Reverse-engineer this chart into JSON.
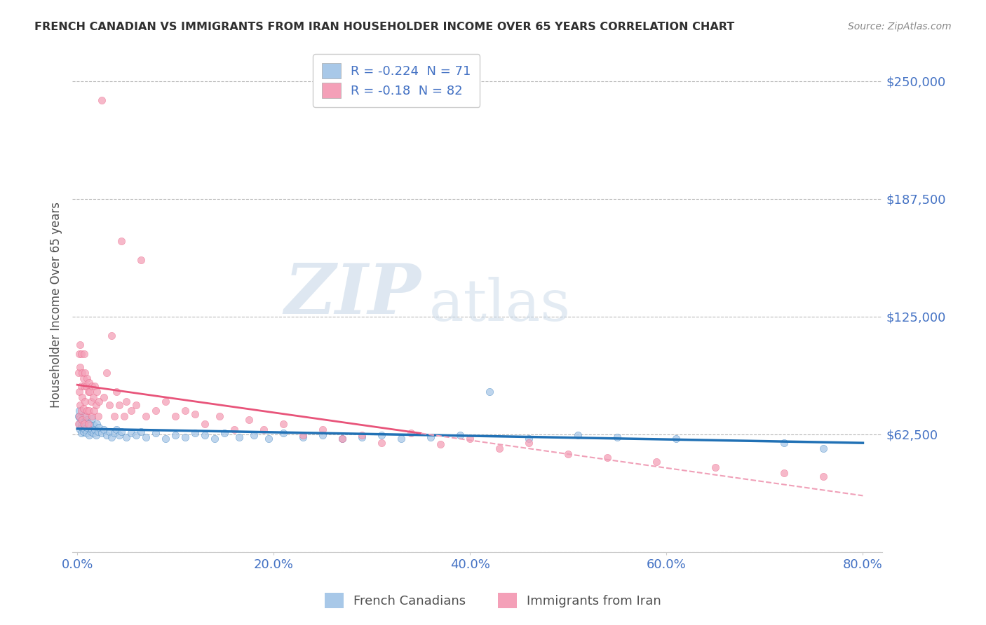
{
  "title": "FRENCH CANADIAN VS IMMIGRANTS FROM IRAN HOUSEHOLDER INCOME OVER 65 YEARS CORRELATION CHART",
  "source_text": "Source: ZipAtlas.com",
  "ylabel": "Householder Income Over 65 years",
  "xlabel_ticks": [
    "0.0%",
    "20.0%",
    "40.0%",
    "60.0%",
    "80.0%"
  ],
  "xlabel_values": [
    0.0,
    0.2,
    0.4,
    0.6,
    0.8
  ],
  "ylim": [
    0,
    262500
  ],
  "xlim": [
    -0.005,
    0.82
  ],
  "yticks": [
    0,
    62500,
    125000,
    187500,
    250000
  ],
  "ytick_labels": [
    "",
    "$62,500",
    "$125,000",
    "$187,500",
    "$250,000"
  ],
  "watermark_zip": "ZIP",
  "watermark_atlas": "atlas",
  "legend_blue_R": -0.224,
  "legend_pink_R": -0.18,
  "legend_blue_N": 71,
  "legend_pink_N": 82,
  "blue_color": "#a8c8e8",
  "pink_color": "#f4a0b8",
  "blue_line_color": "#2171b5",
  "pink_line_color": "#e8547a",
  "pink_dash_color": "#f0a0b8",
  "grid_color": "#b8b8b8",
  "title_color": "#303030",
  "axis_label_color": "#505050",
  "tick_label_color": "#4472c4",
  "source_color": "#888888",
  "background_color": "#ffffff",
  "blue_x": [
    0.001,
    0.002,
    0.002,
    0.003,
    0.003,
    0.004,
    0.004,
    0.005,
    0.005,
    0.006,
    0.006,
    0.007,
    0.008,
    0.008,
    0.009,
    0.01,
    0.01,
    0.012,
    0.012,
    0.013,
    0.014,
    0.015,
    0.015,
    0.016,
    0.017,
    0.018,
    0.019,
    0.02,
    0.021,
    0.022,
    0.025,
    0.027,
    0.03,
    0.033,
    0.035,
    0.038,
    0.04,
    0.043,
    0.045,
    0.05,
    0.055,
    0.06,
    0.065,
    0.07,
    0.08,
    0.09,
    0.1,
    0.11,
    0.12,
    0.13,
    0.14,
    0.15,
    0.165,
    0.18,
    0.195,
    0.21,
    0.23,
    0.25,
    0.27,
    0.29,
    0.31,
    0.33,
    0.36,
    0.39,
    0.42,
    0.46,
    0.51,
    0.55,
    0.61,
    0.72,
    0.76
  ],
  "blue_y": [
    72000,
    68000,
    75000,
    65000,
    71000,
    67000,
    63000,
    70000,
    66000,
    68000,
    64000,
    72000,
    65000,
    69000,
    63000,
    70000,
    66000,
    68000,
    62000,
    67000,
    64000,
    71000,
    65000,
    63000,
    67000,
    65000,
    62000,
    68000,
    64000,
    66000,
    63000,
    65000,
    62000,
    64000,
    61000,
    63000,
    65000,
    62000,
    64000,
    61000,
    63000,
    62000,
    64000,
    61000,
    63000,
    60000,
    62000,
    61000,
    63000,
    62000,
    60000,
    63000,
    61000,
    62000,
    60000,
    63000,
    61000,
    62000,
    60000,
    61000,
    62000,
    60000,
    61000,
    62000,
    85000,
    60000,
    62000,
    61000,
    60000,
    58000,
    55000
  ],
  "pink_x": [
    0.001,
    0.001,
    0.002,
    0.002,
    0.002,
    0.003,
    0.003,
    0.003,
    0.004,
    0.004,
    0.004,
    0.005,
    0.005,
    0.005,
    0.006,
    0.006,
    0.007,
    0.007,
    0.007,
    0.008,
    0.008,
    0.009,
    0.009,
    0.01,
    0.01,
    0.011,
    0.011,
    0.012,
    0.012,
    0.013,
    0.014,
    0.015,
    0.015,
    0.016,
    0.017,
    0.018,
    0.019,
    0.02,
    0.021,
    0.022,
    0.025,
    0.027,
    0.03,
    0.033,
    0.035,
    0.038,
    0.04,
    0.043,
    0.045,
    0.048,
    0.05,
    0.055,
    0.06,
    0.065,
    0.07,
    0.08,
    0.09,
    0.1,
    0.11,
    0.12,
    0.13,
    0.145,
    0.16,
    0.175,
    0.19,
    0.21,
    0.23,
    0.25,
    0.27,
    0.29,
    0.31,
    0.34,
    0.37,
    0.4,
    0.43,
    0.46,
    0.5,
    0.54,
    0.59,
    0.65,
    0.72,
    0.76
  ],
  "pink_y": [
    95000,
    68000,
    105000,
    85000,
    72000,
    98000,
    110000,
    78000,
    88000,
    105000,
    75000,
    95000,
    82000,
    70000,
    92000,
    76000,
    88000,
    105000,
    68000,
    95000,
    80000,
    88000,
    72000,
    92000,
    75000,
    85000,
    68000,
    90000,
    75000,
    85000,
    80000,
    88000,
    72000,
    82000,
    75000,
    88000,
    78000,
    85000,
    72000,
    80000,
    240000,
    82000,
    95000,
    78000,
    115000,
    72000,
    85000,
    78000,
    165000,
    72000,
    80000,
    75000,
    78000,
    155000,
    72000,
    75000,
    80000,
    72000,
    75000,
    73000,
    68000,
    72000,
    65000,
    70000,
    65000,
    68000,
    62000,
    65000,
    60000,
    62000,
    58000,
    63000,
    57000,
    60000,
    55000,
    58000,
    52000,
    50000,
    48000,
    45000,
    42000,
    40000
  ]
}
